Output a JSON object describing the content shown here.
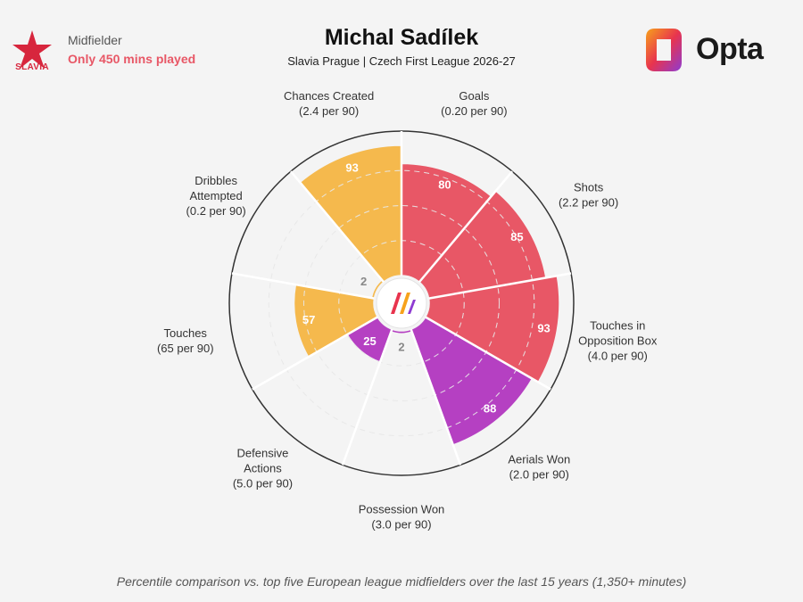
{
  "header": {
    "club_name": "SLAVIA",
    "position": "Midfielder",
    "minutes_note": "Only 450 mins played",
    "player": "Michal Sadílek",
    "subtitle": "Slavia Prague | Czech First League 2026-27",
    "brand": "Opta"
  },
  "footnote": "Percentile comparison vs. top five European league midfielders over the last 15 years (1,350+ minutes)",
  "colors": {
    "attacking": "#e85766",
    "possession": "#f5b94d",
    "defending": "#b540c2",
    "ring": "#d4d4d4",
    "outline": "#333333"
  },
  "chart_data": {
    "type": "radial-bar",
    "value_range": [
      0,
      100
    ],
    "metrics": [
      {
        "line1": "Goals",
        "line2": "(0.20 per 90)",
        "value": 80,
        "group": "attacking"
      },
      {
        "line1": "Shots",
        "line2": "(2.2 per 90)",
        "value": 85,
        "group": "attacking"
      },
      {
        "line1": "Touches in",
        "line2": "Opposition Box",
        "line3": "(4.0 per 90)",
        "value": 93,
        "group": "attacking"
      },
      {
        "line1": "Aerials Won",
        "line2": "(2.0 per 90)",
        "value": 88,
        "group": "defending"
      },
      {
        "line1": "Possession Won",
        "line2": "(3.0 per 90)",
        "value": 2,
        "group": "defending"
      },
      {
        "line1": "Defensive",
        "line2": "Actions",
        "line3": "(5.0 per 90)",
        "value": 25,
        "group": "defending"
      },
      {
        "line1": "Touches",
        "line2": "(65 per 90)",
        "value": 57,
        "group": "possession"
      },
      {
        "line1": "Dribbles",
        "line2": "Attempted",
        "line3": "(0.2 per 90)",
        "value": 2,
        "group": "possession"
      },
      {
        "line1": "Chances Created",
        "line2": "(2.4 per 90)",
        "value": 93,
        "group": "possession"
      }
    ]
  }
}
